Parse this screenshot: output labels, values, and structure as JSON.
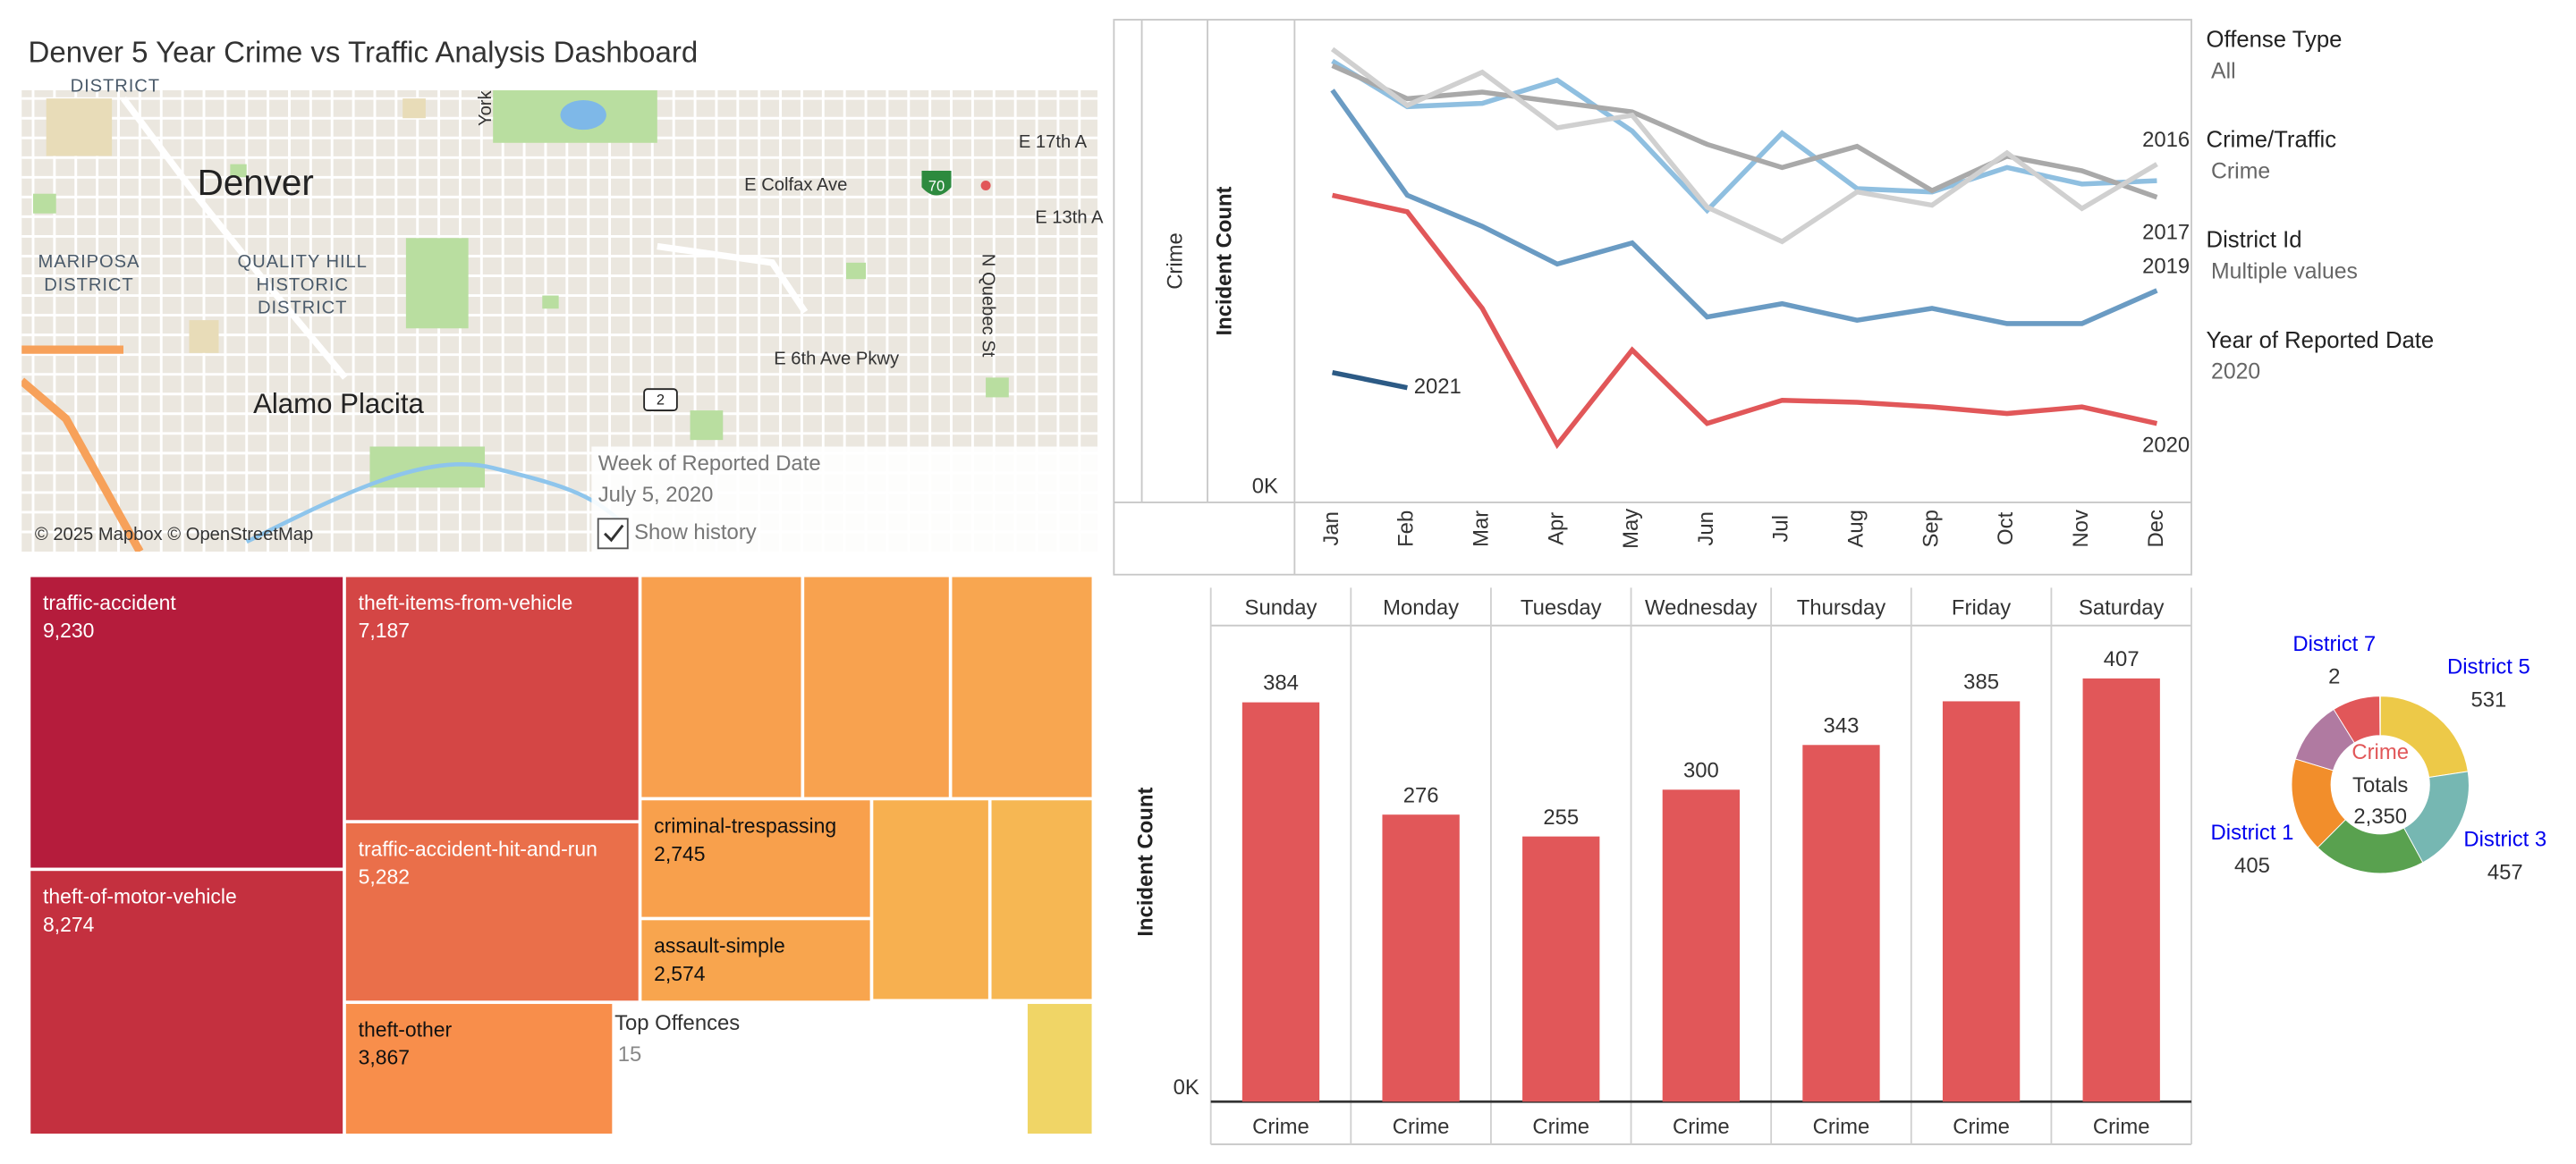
{
  "title": "Denver 5 Year Crime vs Traffic Analysis Dashboard",
  "map": {
    "city": "Denver",
    "district_top": "DISTRICT",
    "district_1": [
      "MARIPOSA",
      "DISTRICT"
    ],
    "district_2": [
      "QUALITY HILL",
      "HISTORIC",
      "DISTRICT"
    ],
    "neighborhood": "Alamo Placita",
    "roads": [
      "E Colfax Ave",
      "E 17th A",
      "E 13th A",
      "E 6th Ave Pkwy",
      "N Quebec St",
      "York"
    ],
    "shields": [
      "70",
      "2"
    ],
    "attribution": "© 2025 Mapbox © OpenStreetMap",
    "week_control": {
      "label": "Week of Reported Date",
      "value": "July 5, 2020",
      "option": "Show history"
    }
  },
  "filters": [
    {
      "label": "Offense Type",
      "value": "All"
    },
    {
      "label": "Crime/Traffic",
      "value": "Crime"
    },
    {
      "label": "District Id",
      "value": "Multiple values"
    },
    {
      "label": "Year of Reported Date",
      "value": "2020"
    }
  ],
  "chart_data": [
    {
      "type": "line",
      "row_label": "Crime",
      "y_label": "Incident Count",
      "categories": [
        "Jan",
        "Feb",
        "Mar",
        "Apr",
        "May",
        "Jun",
        "Jul",
        "Aug",
        "Sep",
        "Oct",
        "Nov",
        "Dec"
      ],
      "ylim": [
        0,
        7000
      ],
      "yticks": [
        {
          "value": 0,
          "label": "0K"
        }
      ],
      "series": [
        {
          "name": null,
          "color": "#8fbfe0",
          "values": [
            6450,
            5760,
            5810,
            6160,
            5390,
            4190,
            5360,
            4520,
            4470,
            4840,
            4590,
            4640
          ]
        },
        {
          "name": "2017",
          "color": "#a9a9a9",
          "values": [
            6380,
            5880,
            5980,
            5830,
            5680,
            5190,
            4840,
            5160,
            4490,
            5010,
            4790,
            4390
          ]
        },
        {
          "name": "2016",
          "color": "#d0d0d0",
          "values": [
            6630,
            5780,
            6280,
            5440,
            5630,
            4240,
            3720,
            4470,
            4270,
            5060,
            4220,
            4890
          ]
        },
        {
          "name": "2019",
          "color": "#6a9bc3",
          "values": [
            6010,
            4420,
            3950,
            3380,
            3700,
            2580,
            2780,
            2530,
            2710,
            2480,
            2480,
            2980
          ]
        },
        {
          "name": "2020",
          "color": "#e15759",
          "values": [
            4420,
            4170,
            2710,
            650,
            2080,
            970,
            1320,
            1290,
            1220,
            1120,
            1220,
            970
          ]
        },
        {
          "name": "2021",
          "color": "#2c5a85",
          "values": [
            1740,
            1510,
            null,
            null,
            null,
            null,
            null,
            null,
            null,
            null,
            null,
            null
          ]
        }
      ]
    },
    {
      "type": "bar",
      "y_label": "Incident Count",
      "column_label": "Crime",
      "categories": [
        "Sunday",
        "Monday",
        "Tuesday",
        "Wednesday",
        "Thursday",
        "Friday",
        "Saturday"
      ],
      "values": [
        384,
        276,
        255,
        300,
        343,
        385,
        407
      ],
      "color": "#e15759",
      "ylim": [
        0,
        450
      ],
      "yticks": [
        {
          "value": 0,
          "label": "0K"
        }
      ]
    },
    {
      "type": "pie",
      "center_title": "Crime",
      "center_label": "Totals",
      "total": 2350,
      "total_label": "2,350",
      "categories": [
        "District 5",
        "District 3",
        null,
        "District 1",
        null,
        null,
        "District 7"
      ],
      "values": [
        531,
        457,
        480,
        405,
        270,
        205,
        2
      ],
      "colors": [
        "#edc948",
        "#76b7b2",
        "#59a14f",
        "#f28e2b",
        "#b07aa1",
        "#e15759",
        "#ff9da7"
      ],
      "label_color": "#0000ee"
    },
    {
      "type": "treemap",
      "title": "Top Offences",
      "top_n": 15,
      "categories": [
        "traffic-accident",
        "theft-of-motor-vehicle",
        "theft-items-from-vehicle",
        "traffic-accident-hit-and-run",
        "theft-other",
        "criminal-trespassing",
        "assault-simple",
        null,
        null,
        null,
        null,
        null,
        null
      ],
      "values": [
        9230,
        8274,
        7187,
        5282,
        3867,
        2745,
        2574,
        3590,
        3260,
        3150,
        2350,
        2050,
        870
      ],
      "value_labels": [
        "9,230",
        "8,274",
        "7,187",
        "5,282",
        "3,867",
        "2,745",
        "2,574",
        null,
        null,
        null,
        null,
        null,
        null
      ],
      "colors": [
        "#b51c3c",
        "#c4303f",
        "#d44645",
        "#ea6f4a",
        "#f88e4b",
        "#f8a04c",
        "#f8a54e",
        "#f8a04e",
        "#f8a24f",
        "#f8a650",
        "#f7b050",
        "#f6b753",
        "#f0d566"
      ]
    }
  ]
}
